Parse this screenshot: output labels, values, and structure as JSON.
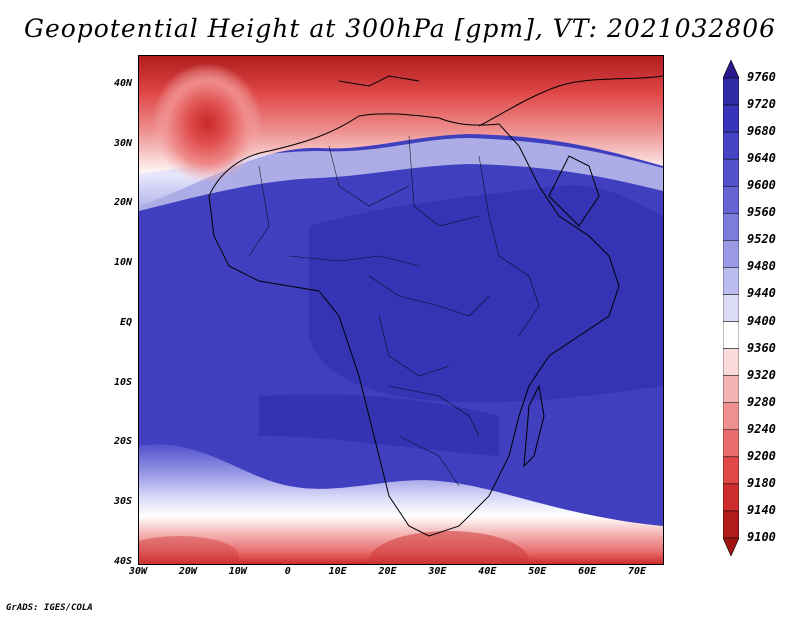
{
  "title": "Geopotential Height at 300hPa [gpm], VT: 2021032806",
  "footer": "GrADS: IGES/COLA",
  "map": {
    "region": "Africa",
    "lon_range": [
      -30,
      75
    ],
    "lat_range": [
      -40,
      45
    ],
    "lat_labels": [
      "40N",
      "30N",
      "20N",
      "10N",
      "EQ",
      "10S",
      "20S",
      "30S",
      "40S"
    ],
    "lon_labels": [
      "30W",
      "20W",
      "10W",
      "0",
      "10E",
      "20E",
      "30E",
      "40E",
      "50E",
      "60E",
      "70E"
    ],
    "lat_values": [
      40,
      30,
      20,
      10,
      0,
      -10,
      -20,
      -30,
      -40
    ],
    "lon_values": [
      -30,
      -20,
      -10,
      0,
      10,
      20,
      30,
      40,
      50,
      60,
      70
    ]
  },
  "colorbar": {
    "labels": [
      "9760",
      "9720",
      "9680",
      "9640",
      "9600",
      "9560",
      "9520",
      "9480",
      "9440",
      "9400",
      "9360",
      "9320",
      "9280",
      "9240",
      "9200",
      "9180",
      "9140",
      "9100"
    ],
    "colors_top_to_bottom": [
      "#2a188c",
      "#2f2ba6",
      "#3736b8",
      "#4444c4",
      "#5252cc",
      "#6464d4",
      "#7c7cdc",
      "#9a9ae6",
      "#bcbcf0",
      "#dcdcf8",
      "#ffffff",
      "#fadada",
      "#f4b4b4",
      "#ee9090",
      "#e86c6c",
      "#e04848",
      "#cc2c2c",
      "#b01c1c",
      "#a01414"
    ]
  }
}
